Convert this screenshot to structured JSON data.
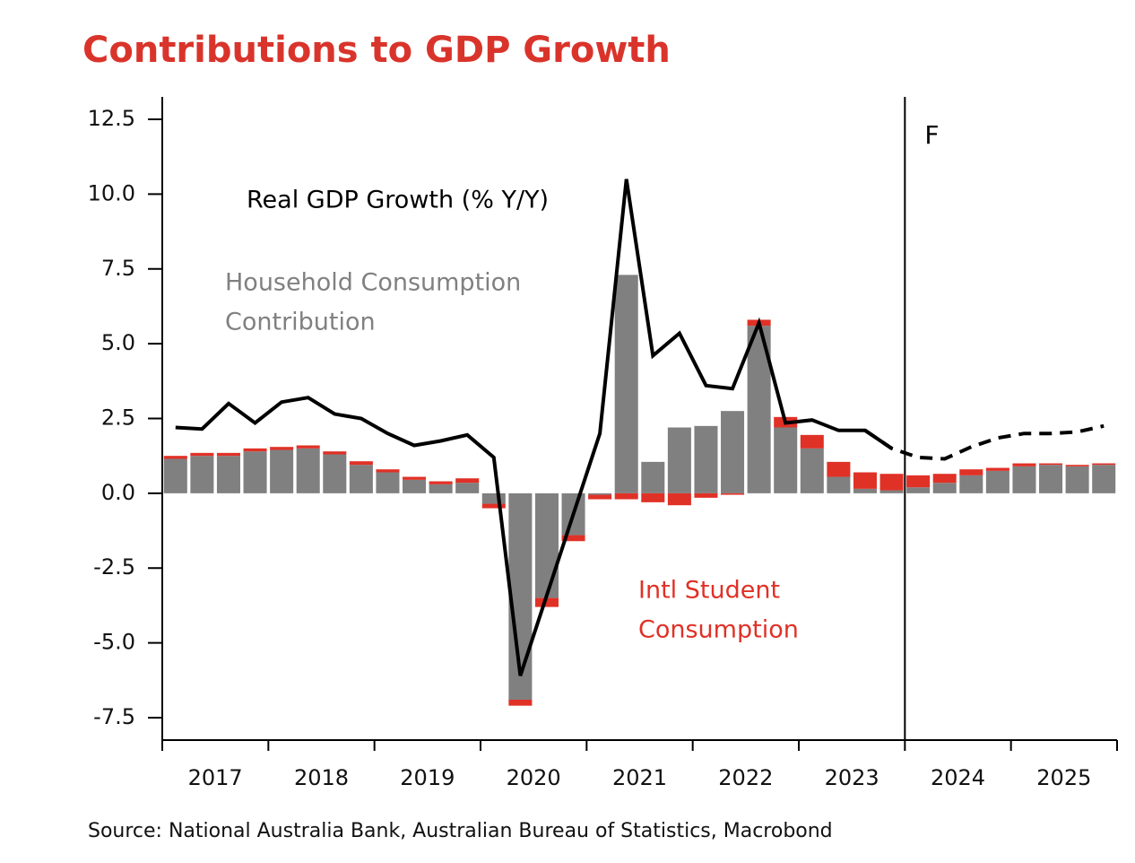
{
  "chart_data": {
    "type": "stacked_bar_line",
    "title": "Contributions to GDP Growth",
    "source": "Source: National Australia Bank, Australian Bureau of Statistics, Macrobond",
    "categories": [
      "2017",
      "2018",
      "2019",
      "2020",
      "2021",
      "2022",
      "2023",
      "2024",
      "2025"
    ],
    "forecast": {
      "label": "F",
      "from": "2024"
    },
    "ylim": [
      -8.25,
      13.25
    ],
    "yticks": [
      12.5,
      {
        "value": 10,
        "label": "10.0"
      },
      7.5,
      {
        "value": 5,
        "label": "5.0"
      },
      2.5,
      {
        "value": 0,
        "label": "0.0"
      },
      -2.5,
      {
        "value": -5,
        "label": "-5.0"
      },
      -7.5
    ],
    "series": [
      {
        "name": "Household Consumption Contribution",
        "label_lines": [
          "Household Consumption",
          "Contribution"
        ],
        "kind": "bar",
        "color": "#808080",
        "values": [
          [
            1.15,
            1.25,
            1.25,
            1.4
          ],
          [
            1.45,
            1.5,
            1.3,
            0.95
          ],
          [
            0.7,
            0.45,
            0.3,
            0.35
          ],
          [
            -0.35,
            -6.9,
            -3.5,
            -1.4
          ],
          [
            -0.05,
            7.3,
            1.05,
            2.2
          ],
          [
            2.25,
            2.75,
            5.6,
            2.2
          ],
          [
            1.5,
            0.55,
            0.15,
            0.1
          ],
          [
            0.2,
            0.35,
            0.6,
            0.75
          ],
          [
            0.9,
            0.95,
            0.9,
            0.95
          ]
        ]
      },
      {
        "name": "Intl Student Consumption",
        "label_lines": [
          "Intl Student",
          "Consumption"
        ],
        "kind": "bar",
        "color": "#e03127",
        "values": [
          [
            0.1,
            0.1,
            0.1,
            0.1
          ],
          [
            0.1,
            0.1,
            0.1,
            0.12
          ],
          [
            0.1,
            0.1,
            0.1,
            0.15
          ],
          [
            -0.15,
            -0.2,
            -0.3,
            -0.2
          ],
          [
            -0.15,
            -0.2,
            -0.3,
            -0.4
          ],
          [
            -0.15,
            -0.05,
            0.2,
            0.35
          ],
          [
            0.45,
            0.5,
            0.55,
            0.55
          ],
          [
            0.4,
            0.3,
            0.2,
            0.1
          ],
          [
            0.1,
            0.05,
            0.05,
            0.05
          ]
        ]
      },
      {
        "name": "Real GDP Growth (% Y/Y)",
        "kind": "line",
        "color": "#000000",
        "dashed": false,
        "values": [
          [
            2.2,
            2.15,
            3.0,
            2.35
          ],
          [
            3.05,
            3.2,
            2.65,
            2.5
          ],
          [
            2.0,
            1.6,
            1.75,
            1.95
          ],
          [
            1.2,
            -6.1,
            -3.4,
            -0.7
          ],
          [
            2.0,
            10.5,
            4.6,
            5.35
          ],
          [
            3.6,
            3.5,
            5.7,
            2.35
          ],
          [
            2.45,
            2.1,
            2.1,
            1.5
          ],
          [
            null,
            null,
            null,
            null
          ],
          [
            null,
            null,
            null,
            null
          ]
        ]
      },
      {
        "kind": "line",
        "color": "#000000",
        "dashed": true,
        "values": [
          [
            null,
            null,
            null,
            null
          ],
          [
            null,
            null,
            null,
            null
          ],
          [
            null,
            null,
            null,
            null
          ],
          [
            null,
            null,
            null,
            null
          ],
          [
            null,
            null,
            null,
            null
          ],
          [
            null,
            null,
            null,
            null
          ],
          [
            null,
            null,
            2.1,
            1.5
          ],
          [
            1.2,
            1.15,
            1.55,
            1.85
          ],
          [
            2.0,
            2.0,
            2.05,
            2.25
          ]
        ]
      }
    ]
  }
}
